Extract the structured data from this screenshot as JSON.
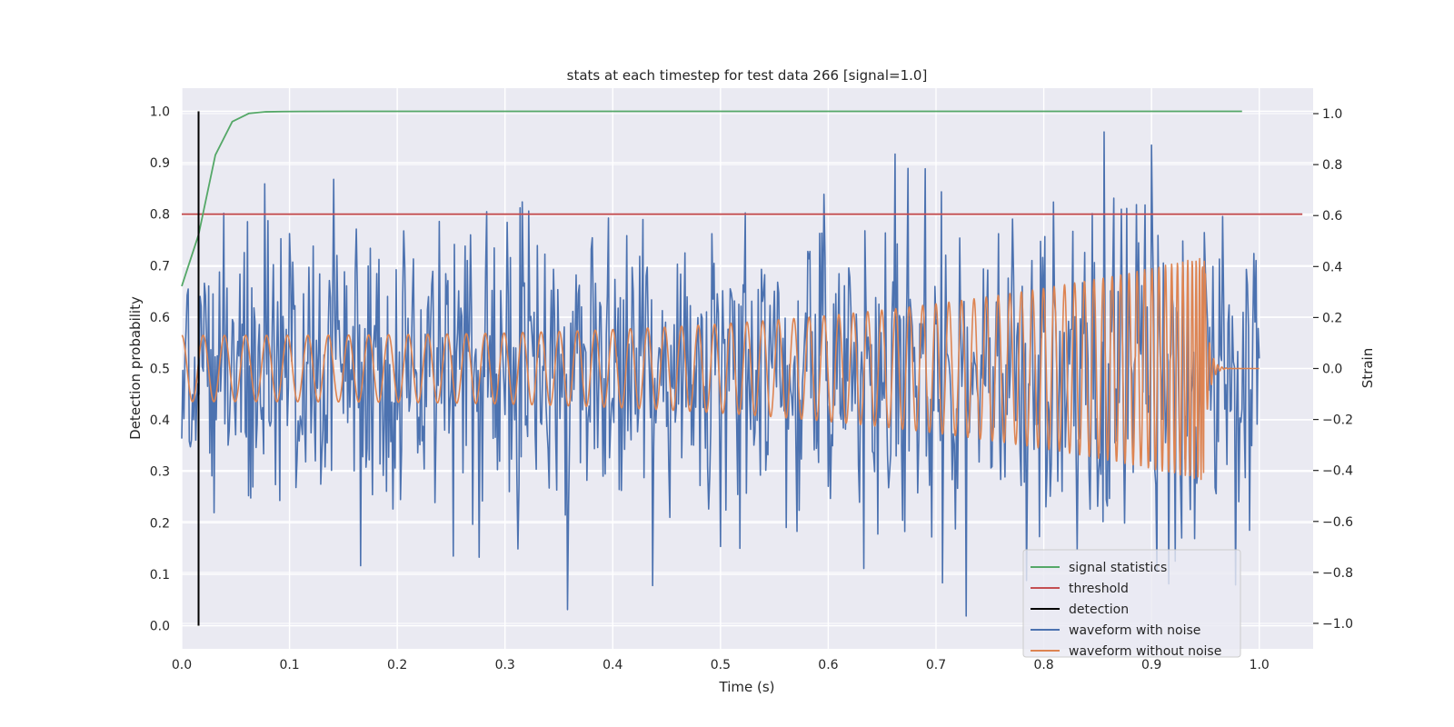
{
  "chart_data": {
    "type": "line",
    "title": "stats at each timestep for test data 266 [signal=1.0]",
    "xlabel": "Time (s)",
    "ylabel": "Detection probability",
    "y2label": "Strain",
    "xlim": [
      0.0,
      1.05
    ],
    "ylim": [
      -0.045,
      1.045
    ],
    "y2lim": [
      -1.1,
      1.1
    ],
    "x_ticks": [
      0.0,
      0.1,
      0.2,
      0.3,
      0.4,
      0.5,
      0.6,
      0.7,
      0.8,
      0.9,
      1.0
    ],
    "x_tick_labels": [
      "0.0",
      "0.1",
      "0.2",
      "0.3",
      "0.4",
      "0.5",
      "0.6",
      "0.7",
      "0.8",
      "0.9",
      "1.0"
    ],
    "y_ticks": [
      0.0,
      0.1,
      0.2,
      0.3,
      0.4,
      0.5,
      0.6,
      0.7,
      0.8,
      0.9,
      1.0
    ],
    "y_tick_labels": [
      "0.0",
      "0.1",
      "0.2",
      "0.3",
      "0.4",
      "0.5",
      "0.6",
      "0.7",
      "0.8",
      "0.9",
      "1.0"
    ],
    "y2_ticks": [
      -1.0,
      -0.8,
      -0.6,
      -0.4,
      -0.2,
      0.0,
      0.2,
      0.4,
      0.6,
      0.8,
      1.0
    ],
    "y2_tick_labels": [
      "−1.0",
      "−0.8",
      "−0.6",
      "−0.4",
      "−0.2",
      "0.0",
      "0.2",
      "0.4",
      "0.6",
      "0.8",
      "1.0"
    ],
    "grid": true,
    "legend_position": "lower-right",
    "background": "#eaeaf2",
    "series": [
      {
        "name": "signal statistics",
        "axis": "left",
        "color": "#55a868",
        "x": [
          0.0,
          0.0156,
          0.0312,
          0.0469,
          0.0625,
          0.078,
          0.094,
          0.11,
          0.2,
          0.4,
          0.6,
          0.8,
          0.984
        ],
        "y": [
          0.66,
          0.76,
          0.915,
          0.98,
          0.996,
          0.999,
          0.9995,
          0.9998,
          1.0,
          1.0,
          1.0,
          1.0,
          1.0
        ]
      },
      {
        "name": "threshold",
        "axis": "left",
        "color": "#c44e52",
        "x": [
          0.0,
          1.04
        ],
        "y": [
          0.8,
          0.8
        ]
      },
      {
        "name": "detection",
        "axis": "left",
        "color": "#000000",
        "x": [
          0.0156,
          0.0156
        ],
        "y": [
          0.0,
          1.0
        ]
      },
      {
        "name": "waveform with noise",
        "axis": "right",
        "color": "#4c72b0",
        "generated": "noisy",
        "x_range": [
          0.0,
          1.0
        ],
        "y_range": [
          -0.98,
          1.0
        ]
      },
      {
        "name": "waveform without noise",
        "axis": "right",
        "color": "#dd8452",
        "generated": "chirp",
        "x_range": [
          0.0,
          1.0
        ],
        "amplitude_start": 0.13,
        "amplitude_peak": 0.44,
        "merger_time": 0.95,
        "cycles_in_first_0.1s": 5
      }
    ]
  }
}
